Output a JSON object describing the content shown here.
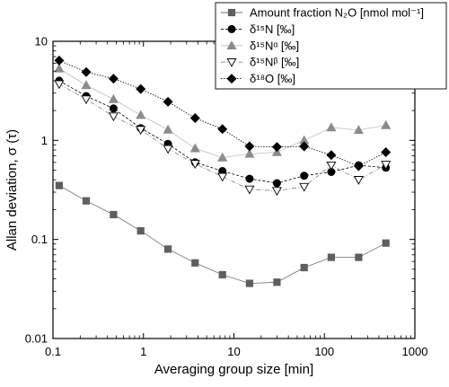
{
  "chart_data": {
    "type": "scatter",
    "title": "",
    "xlabel": "Averaging group size [min]",
    "ylabel": "Allan deviation, σ (τ)",
    "xscale": "log",
    "yscale": "log",
    "xlim": [
      0.1,
      1000
    ],
    "ylim": [
      0.01,
      10
    ],
    "x_ticks": [
      0.1,
      1,
      10,
      100,
      1000
    ],
    "x_tick_labels": [
      "0.1",
      "1",
      "10",
      "100",
      "1000"
    ],
    "y_ticks": [
      0.01,
      0.1,
      1,
      10
    ],
    "y_tick_labels": [
      "0.01",
      "0.1",
      "1",
      "10"
    ],
    "grid": false,
    "legend_position": "top-right, extending above the plot area",
    "x": [
      0.117,
      0.233,
      0.467,
      0.933,
      1.87,
      3.73,
      7.47,
      14.9,
      29.9,
      59.7,
      119,
      239,
      478
    ],
    "series": [
      {
        "name": "Amount fraction N₂O [nmol mol⁻¹]",
        "marker": "square",
        "color": "#5f5f5f",
        "line": "solid",
        "values": [
          0.35,
          0.245,
          0.178,
          0.122,
          0.08,
          0.058,
          0.044,
          0.036,
          0.037,
          0.052,
          0.066,
          0.066,
          0.092
        ]
      },
      {
        "name": "δ¹⁵N [‰]",
        "marker": "circle",
        "color": "#000000",
        "line": "dash",
        "values": [
          4.0,
          2.8,
          2.1,
          1.33,
          0.92,
          0.6,
          0.49,
          0.41,
          0.37,
          0.44,
          0.48,
          0.56,
          0.53
        ]
      },
      {
        "name": "δ¹⁵Nᵅ [‰]",
        "marker": "triangle-up",
        "color": "#8c8c8c",
        "line": "solid",
        "values": [
          5.3,
          3.6,
          2.6,
          1.8,
          1.28,
          0.83,
          0.67,
          0.73,
          0.76,
          1.0,
          1.35,
          1.27,
          1.42
        ]
      },
      {
        "name": "δ¹⁵Nᵝ [‰]",
        "marker": "triangle-down",
        "color": "#ffffff",
        "line": "dashdot",
        "values": [
          3.7,
          2.6,
          1.75,
          1.28,
          0.82,
          0.58,
          0.43,
          0.32,
          0.31,
          0.34,
          0.56,
          0.4,
          0.57
        ]
      },
      {
        "name": "δ¹⁸O [‰]",
        "marker": "diamond",
        "color": "#000000",
        "line": "dot",
        "values": [
          6.4,
          4.9,
          4.2,
          3.3,
          2.45,
          1.68,
          1.3,
          0.87,
          0.86,
          0.87,
          0.71,
          0.55,
          0.76
        ]
      }
    ]
  }
}
